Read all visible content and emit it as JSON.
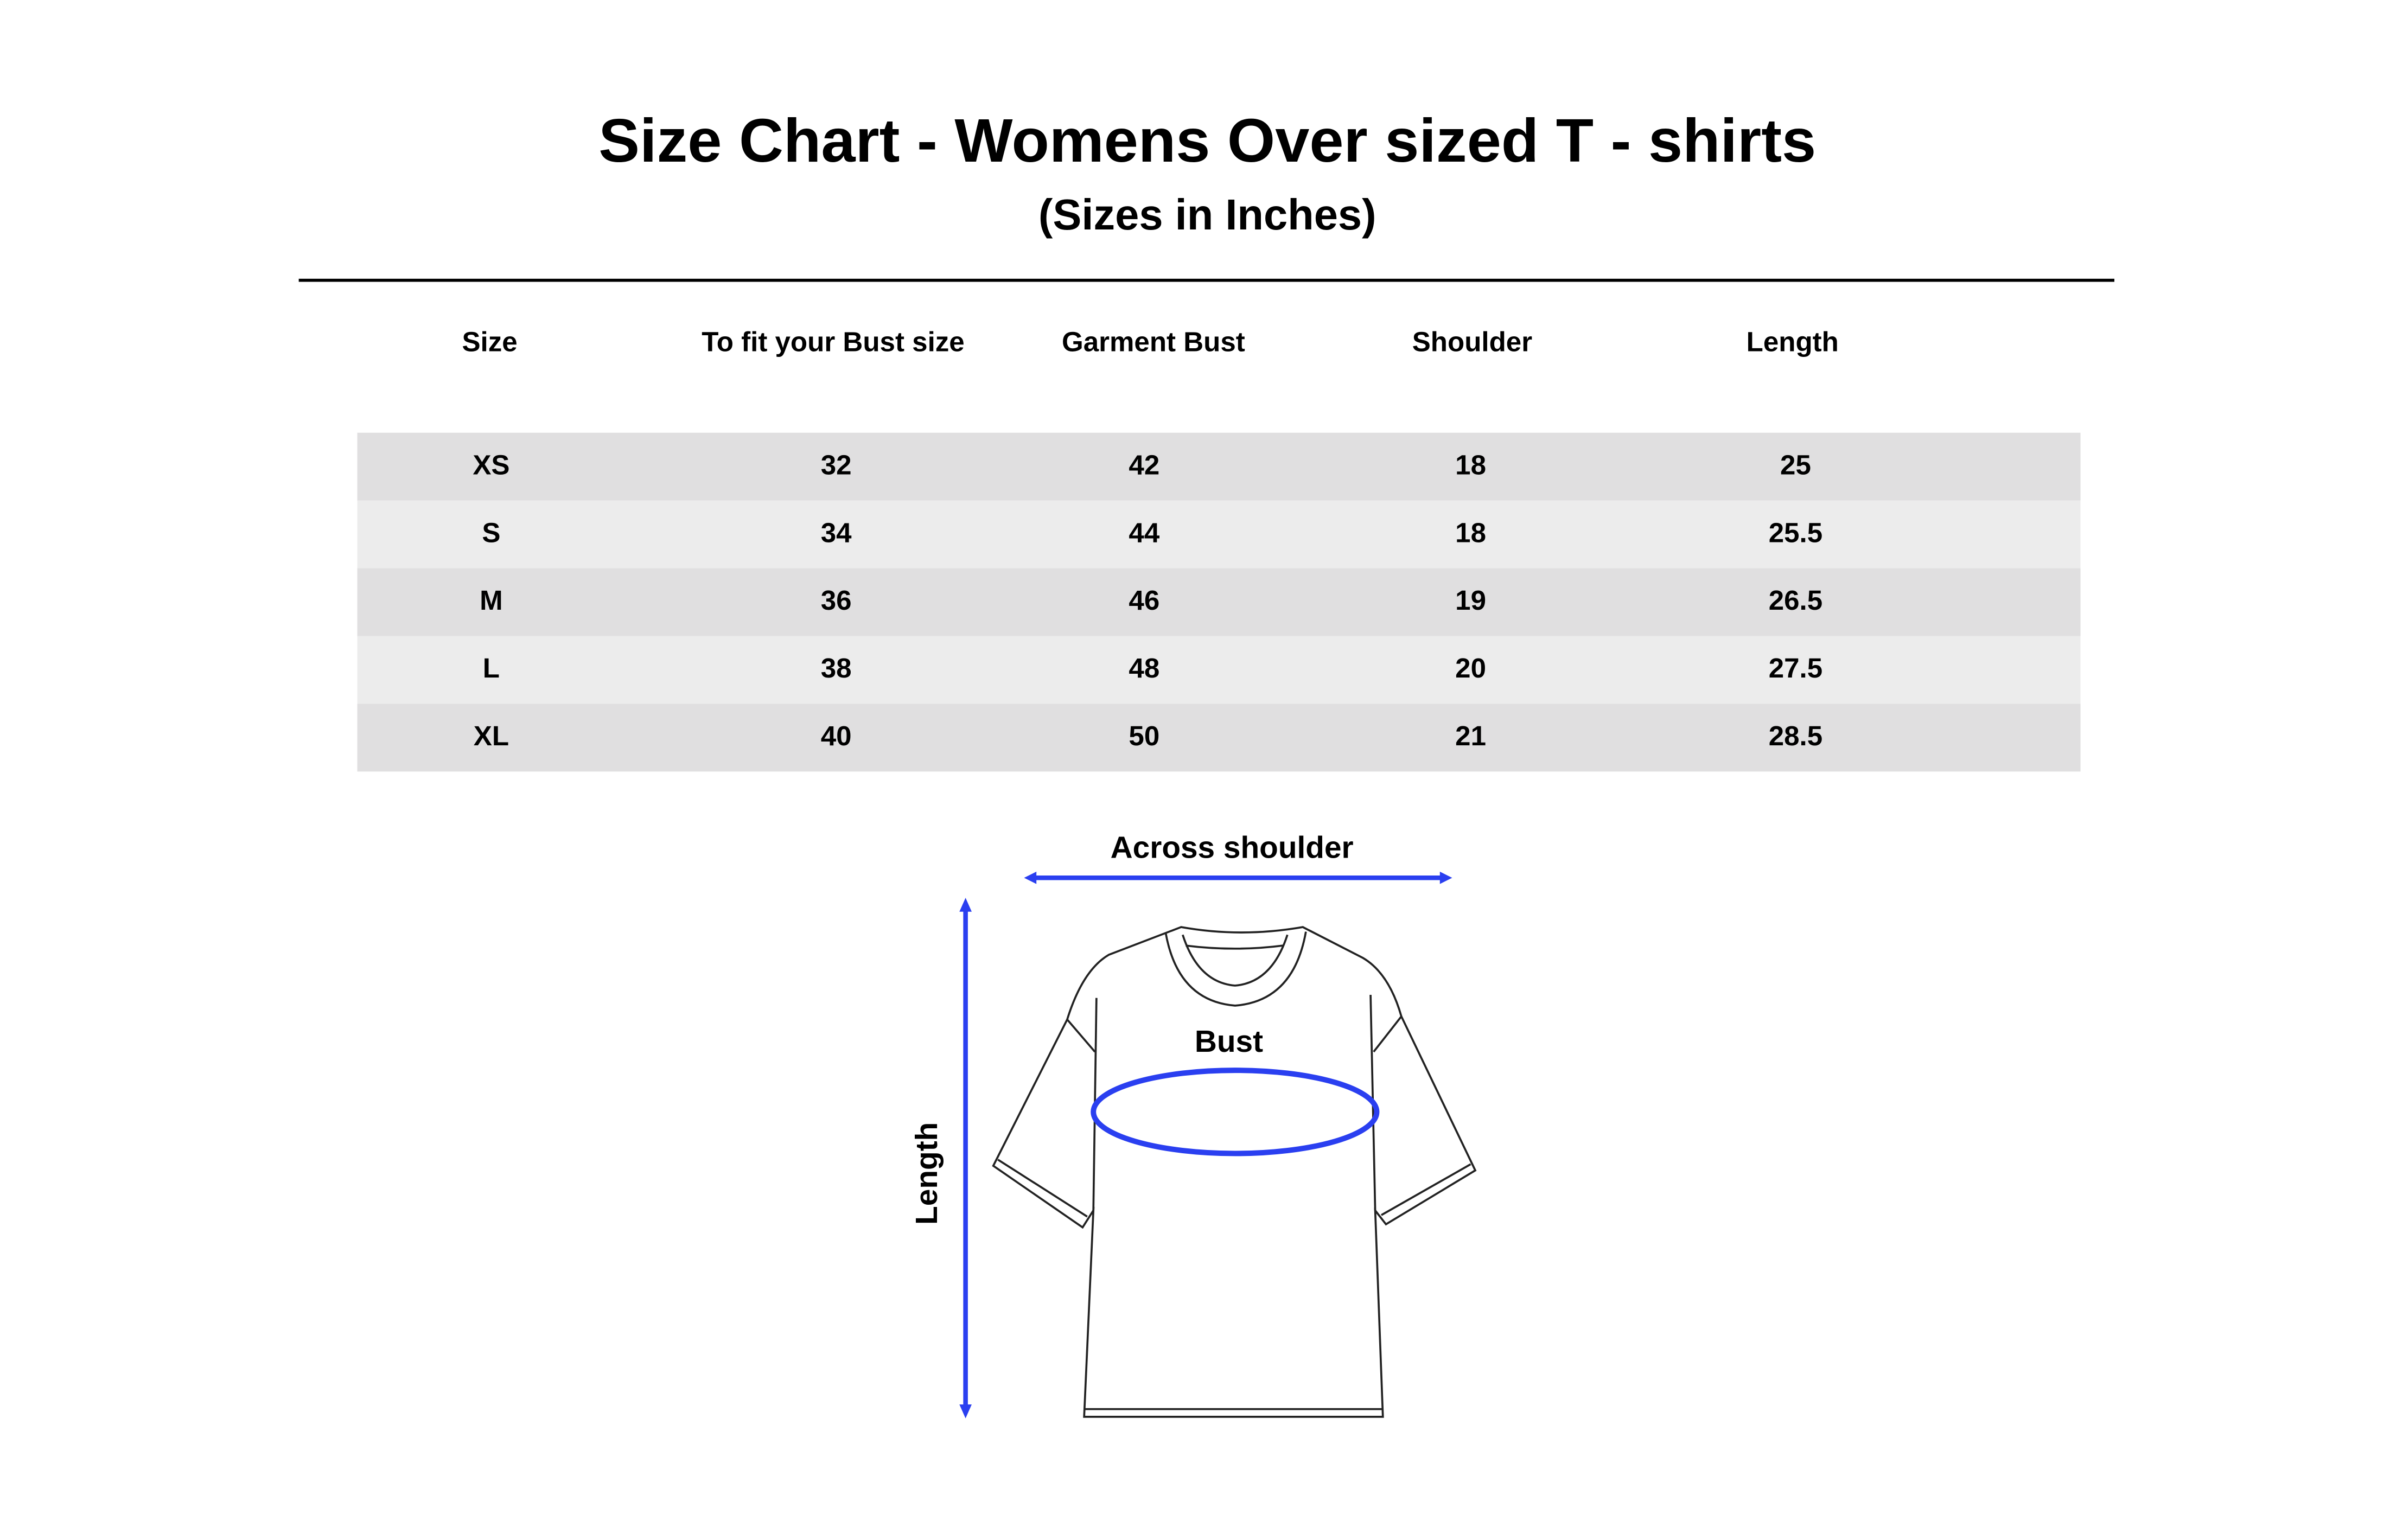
{
  "title": "Size Chart - Womens Over sized T - shirts",
  "subtitle": "(Sizes in Inches)",
  "table": {
    "headers": [
      "Size",
      "To fit your Bust size",
      "Garment Bust",
      "Shoulder",
      "Length"
    ],
    "rows": [
      [
        "XS",
        "32",
        "42",
        "18",
        "25"
      ],
      [
        "S",
        "34",
        "44",
        "18",
        "25.5"
      ],
      [
        "M",
        "36",
        "46",
        "19",
        "26.5"
      ],
      [
        "L",
        "38",
        "48",
        "20",
        "27.5"
      ],
      [
        "XL",
        "40",
        "50",
        "21",
        "28.5"
      ]
    ],
    "row_colors": [
      "#e0dfe0",
      "#ececec"
    ]
  },
  "diagram": {
    "across_shoulder_label": "Across shoulder",
    "bust_label": "Bust",
    "length_label": "Length",
    "measure_color": "#2a3ff0"
  }
}
